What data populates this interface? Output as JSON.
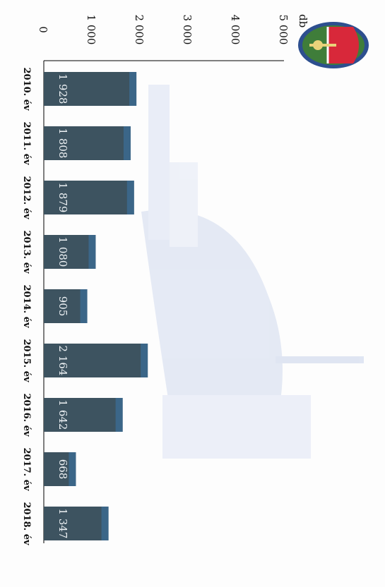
{
  "chart_data": {
    "type": "bar",
    "orientation": "horizontal",
    "rotated_page": true,
    "ylabel": "db",
    "categories": [
      "2010. év",
      "2011. év",
      "2012. év",
      "2013. év",
      "2014. év",
      "2015. év",
      "2016. év",
      "2017. év",
      "2018. év"
    ],
    "values": [
      1928,
      1808,
      1879,
      1080,
      905,
      2164,
      1642,
      668,
      1347
    ],
    "data_labels": [
      "1 928",
      "1 808",
      "1 879",
      "1 080",
      "905",
      "2 164",
      "1 642",
      "668",
      "1 347"
    ],
    "xlim": [
      0,
      5000
    ],
    "ticks": [
      0,
      1000,
      2000,
      3000,
      4000,
      5000
    ],
    "tick_labels": [
      "0",
      "1 000",
      "2 000",
      "3 000",
      "4 000",
      "5 000"
    ],
    "bar_color": "#3d5360",
    "bar_accent_color": "#3a6f9a",
    "grid": false
  },
  "colors": {
    "background": "#fdfdfd",
    "watermark": "#b8c6e6",
    "emblem_red": "#d8283a",
    "emblem_blue": "#2d4f8f",
    "emblem_green": "#3f7d3a"
  },
  "icons": {
    "emblem": "coat-of-arms-icon",
    "watermark": "building-watermark"
  }
}
